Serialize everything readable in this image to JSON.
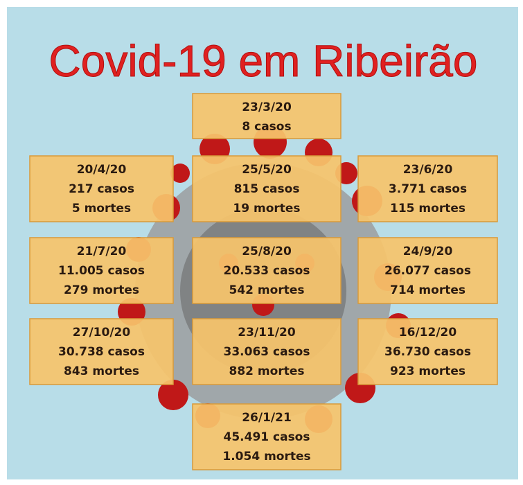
{
  "title": "Covid-19 em Ribeirão",
  "boxes": [
    {
      "date": "23/3/20",
      "cases": "8 casos"
    },
    {
      "date": "20/4/20",
      "cases": "217 casos",
      "deaths": "5 mortes"
    },
    {
      "date": "25/5/20",
      "cases": "815 casos",
      "deaths": "19 mortes"
    },
    {
      "date": "23/6/20",
      "cases": "3.771 casos",
      "deaths": "115 mortes"
    },
    {
      "date": "21/7/20",
      "cases": "11.005 casos",
      "deaths": "279 mortes"
    },
    {
      "date": "25/8/20",
      "cases": "20.533 casos",
      "deaths": "542 mortes"
    },
    {
      "date": "24/9/20",
      "cases": "26.077 casos",
      "deaths": "714 mortes"
    },
    {
      "date": "27/10/20",
      "cases": "30.738 casos",
      "deaths": "843 mortes"
    },
    {
      "date": "23/11/20",
      "cases": "33.063 casos",
      "deaths": "882 mortes"
    },
    {
      "date": "16/12/20",
      "cases": "36.730 casos",
      "deaths": "923 mortes"
    },
    {
      "date": "26/1/21",
      "cases": "45.491 casos",
      "deaths": "1.054 mortes"
    }
  ]
}
